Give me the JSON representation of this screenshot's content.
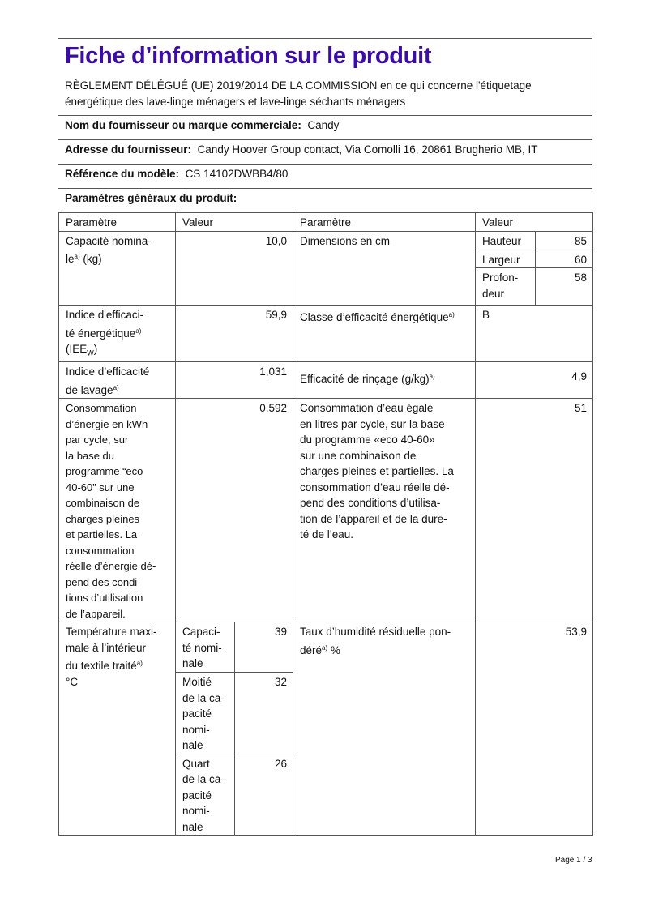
{
  "header": {
    "title": "Fiche d’information sur le produit",
    "regulation": "RÈGLEMENT DÉLÉGUÉ (UE) 2019/2014 DE LA COMMISSION en ce qui concerne l'étiquetage énergétique des lave-linge ménagers et lave-linge séchants ménagers",
    "supplier_label": "Nom du fournisseur ou marque commerciale:",
    "supplier_value": "Candy",
    "address_label": "Adresse du fournisseur:",
    "address_value": "Candy Hoover Group contact, Via Comolli 16, 20861 Brugherio MB, IT",
    "model_label": "Référence du modèle:",
    "model_value": "CS 14102DWBB4/80",
    "params_label": "Paramètres généraux du produit:"
  },
  "table": {
    "col_param": "Paramètre",
    "col_value": "Valeur",
    "capacity": {
      "label": "Capacité    nomina-\nle",
      "sup": "a)",
      "unit": "  (kg)",
      "value": "10,0"
    },
    "dimensions": {
      "label": "Dimensions en cm",
      "height_label": "Hauteur",
      "height": "85",
      "width_label": "Largeur",
      "width": "60",
      "depth_label": "Profon-\ndeur",
      "depth": "58"
    },
    "eei": {
      "label": "Indice     d'efficaci-\nté   énergétique",
      "sup": "a)",
      "unit": "\n  (IEE",
      "sub": "W",
      "close": ")",
      "value": "59,9"
    },
    "energy_class": {
      "label": "Classe d’efficacité énergétique",
      "sup": "a)",
      "value": "B"
    },
    "wash": {
      "label": "Indice   d’efficacité\nde lavage",
      "sup": "a)",
      "value": "1,031"
    },
    "rinse": {
      "label": "Efficacité de rinçage (g/kg)",
      "sup": "a)",
      "value": "4,9"
    },
    "energy": {
      "label": "Consommation\nd’énergie  en  kWh\npar      cycle,      sur\nla        base        du\nprogramme      “eco\n40-60”    sur    une\ncombinaison       de\ncharges        pleines\net   partielles.    La\nconsommation\nréelle d’énergie dé-\npend   des   condi-\ntions     d’utilisation\nde l’appareil.",
      "value": "0,592"
    },
    "water": {
      "label": "Consommation d’eau égale\nen litres par cycle, sur la base\ndu programme «eco 40-60»\nsur une combinaison de\ncharges pleines et partielles. La\nconsommation d’eau réelle dé-\npend des conditions d’utilisa-\ntion de l’appareil et de la dure-\nté de l’eau.",
      "value": "51"
    },
    "temperature": {
      "label": "Température maxi-\nmale  à  l’intérieur\ndu   textile   traité",
      "sup": "a)",
      "unit": "\n  °C",
      "rows": [
        {
          "label": "Capaci-\nté nomi-\nnale",
          "value": "39"
        },
        {
          "label": "Moitié\nde la ca-\npacité\nnomi-\nnale",
          "value": "32"
        },
        {
          "label": "Quart\nde la ca-\npacité\nnomi-\nnale",
          "value": "26"
        }
      ]
    },
    "humidity": {
      "label": "Taux d’humidité résiduelle pon-\ndéré",
      "sup": "a)",
      "unit": "  %",
      "value": "53,9"
    }
  },
  "footer": {
    "page": "Page 1 / 3"
  }
}
